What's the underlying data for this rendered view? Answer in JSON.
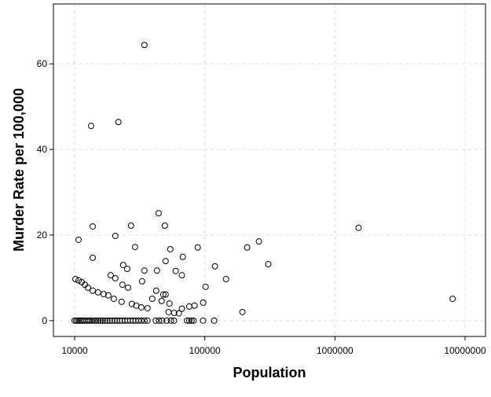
{
  "chart_data": {
    "type": "scatter",
    "xlabel": "Population",
    "ylabel": "Murder Rate per 100,000",
    "xscale": "log",
    "grid": true,
    "color": "#000000",
    "xlim": [
      6870,
      14350000
    ],
    "ylim": [
      -3.7,
      74
    ],
    "xticks": [
      10000,
      100000,
      1000000,
      10000000
    ],
    "yticks": [
      0,
      20,
      40,
      60
    ],
    "series": [
      {
        "name": "Murder Rate per 100,000",
        "color": "#000000",
        "x": [
          34360,
          13380,
          21700,
          13770,
          44200,
          27150,
          49300,
          10720,
          20540,
          1520000,
          260500,
          211500,
          29100,
          54300,
          88300,
          13770,
          67800,
          50000,
          307600,
          23600,
          25350,
          119700,
          34360,
          42940,
          59800,
          18900,
          20540,
          66700,
          145600,
          32970,
          10140,
          10720,
          11330,
          11980,
          23300,
          25700,
          101400,
          12660,
          13770,
          15160,
          16700,
          18150,
          42330,
          47960,
          20000,
          39500,
          50000,
          22950,
          46600,
          53500,
          97300,
          27500,
          29800,
          32500,
          36300,
          75900,
          66700,
          83400,
          52700,
          58200,
          63200,
          194600,
          8020000,
          10000,
          10300,
          10600,
          10900,
          11200,
          11500,
          11900,
          12300,
          12700,
          13100,
          13600,
          14100,
          14600,
          15200,
          15800,
          16400,
          17100,
          17800,
          18600,
          19400,
          20300,
          21200,
          22200,
          23200,
          24300,
          25500,
          26800,
          28100,
          29500,
          31000,
          32600,
          34400,
          36300,
          42000,
          44500,
          47000,
          51000,
          55000,
          58000,
          73000,
          76000,
          79000,
          82000,
          97000,
          118000
        ],
        "y": [
          64.4,
          45.5,
          46.4,
          22.0,
          25.1,
          22.2,
          22.2,
          18.9,
          19.8,
          21.7,
          18.5,
          17.1,
          17.2,
          16.7,
          17.1,
          14.7,
          14.9,
          13.9,
          13.2,
          13.0,
          12.1,
          12.7,
          11.7,
          11.7,
          11.6,
          10.6,
          9.9,
          10.6,
          9.7,
          9.2,
          9.7,
          9.4,
          9.0,
          8.4,
          8.4,
          7.7,
          7.9,
          7.7,
          7.0,
          6.6,
          6.2,
          5.9,
          7.0,
          6.1,
          5.1,
          5.1,
          6.1,
          4.4,
          4.6,
          4.0,
          4.2,
          3.9,
          3.5,
          3.1,
          2.9,
          3.3,
          2.8,
          3.5,
          2.0,
          1.8,
          1.7,
          2.0,
          5.1,
          0,
          0,
          0,
          0,
          0,
          0,
          0,
          0,
          0,
          0,
          0,
          0,
          0,
          0,
          0,
          0,
          0,
          0,
          0,
          0,
          0,
          0,
          0,
          0,
          0,
          0,
          0,
          0,
          0,
          0,
          0,
          0,
          0,
          0,
          0,
          0,
          0,
          0,
          0,
          0,
          0,
          0,
          0,
          0,
          0
        ]
      }
    ]
  }
}
